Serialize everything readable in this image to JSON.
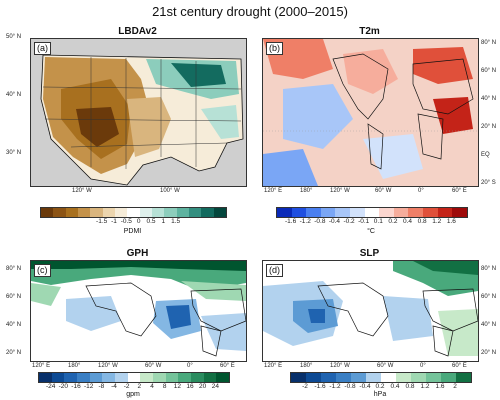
{
  "title": "21st century drought (2000–2015)",
  "panels": [
    {
      "tag": "(a)",
      "title": "LBDAv2",
      "unit": "PDMI",
      "xticks": [
        "120° W",
        "100° W"
      ],
      "yticks": [
        "50° N",
        "40° N",
        "30° N"
      ],
      "cbar": {
        "labels": [
          "-1.5",
          "-1",
          "-0.5",
          "0",
          "0.5",
          "1",
          "1.5"
        ],
        "colors": [
          "#6b3a0b",
          "#8c5415",
          "#a8701f",
          "#c4924a",
          "#d9b57e",
          "#ecd5ae",
          "#f6ecd9",
          "#ffffff",
          "#dff0ec",
          "#b7e1d6",
          "#8ccdbc",
          "#5eb3a0",
          "#348f80",
          "#136b5f",
          "#04473d"
        ]
      }
    },
    {
      "tag": "(b)",
      "title": "T2m",
      "unit": "°C",
      "xticks": [
        "120° E",
        "180°",
        "120° W",
        "60° W",
        "0°",
        "60° E"
      ],
      "yticks": [
        "80° N",
        "60° N",
        "40° N",
        "20° N",
        "EQ",
        "20° S"
      ],
      "cbar": {
        "labels": [
          "-1.6",
          "-1.2",
          "-0.8",
          "-0.4",
          "-0.2",
          "-0.1",
          "0.1",
          "0.2",
          "0.4",
          "0.8",
          "1.2",
          "1.6"
        ],
        "colors": [
          "#0a2ab8",
          "#1f4fe0",
          "#4a7ff0",
          "#7aa6f5",
          "#a8c6f8",
          "#d2e2fb",
          "#ffffff",
          "#fbd6cf",
          "#f6ad9c",
          "#ef7f67",
          "#e0503a",
          "#c42318",
          "#9e0a0a"
        ]
      }
    },
    {
      "tag": "(c)",
      "title": "GPH",
      "unit": "gpm",
      "xticks": [
        "120° E",
        "180°",
        "120° W",
        "60° W",
        "0°",
        "60° E"
      ],
      "yticks": [
        "80° N",
        "60° N",
        "40° N",
        "20° N"
      ],
      "cbar": {
        "labels": [
          "-24",
          "-20",
          "-16",
          "-12",
          "-8",
          "-4",
          "-2",
          "2",
          "4",
          "8",
          "12",
          "16",
          "20",
          "24"
        ],
        "colors": [
          "#08306b",
          "#0d4a94",
          "#1f63b0",
          "#3a7fc4",
          "#5c9bd4",
          "#84b7e3",
          "#b2d2ee",
          "#ffffff",
          "#c7e9c9",
          "#9fd8b2",
          "#74c39a",
          "#49a97c",
          "#2a8c5f",
          "#127043",
          "#00552f"
        ]
      }
    },
    {
      "tag": "(d)",
      "title": "SLP",
      "unit": "hPa",
      "xticks": [
        "120° E",
        "180°",
        "120° W",
        "60° W",
        "0°",
        "60° E"
      ],
      "yticks": [
        "80° N",
        "60° N",
        "40° N",
        "20° N"
      ],
      "cbar": {
        "labels": [
          "-2",
          "-1.6",
          "-1.2",
          "-0.8",
          "-0.4",
          "0.2",
          "0.4",
          "0.8",
          "1.2",
          "1.6",
          "2"
        ],
        "colors": [
          "#08306b",
          "#0d4a94",
          "#1f63b0",
          "#3a7fc4",
          "#5c9bd4",
          "#b2d2ee",
          "#ffffff",
          "#c7e9c9",
          "#9fd8b2",
          "#74c39a",
          "#49a97c",
          "#127043"
        ]
      }
    }
  ]
}
